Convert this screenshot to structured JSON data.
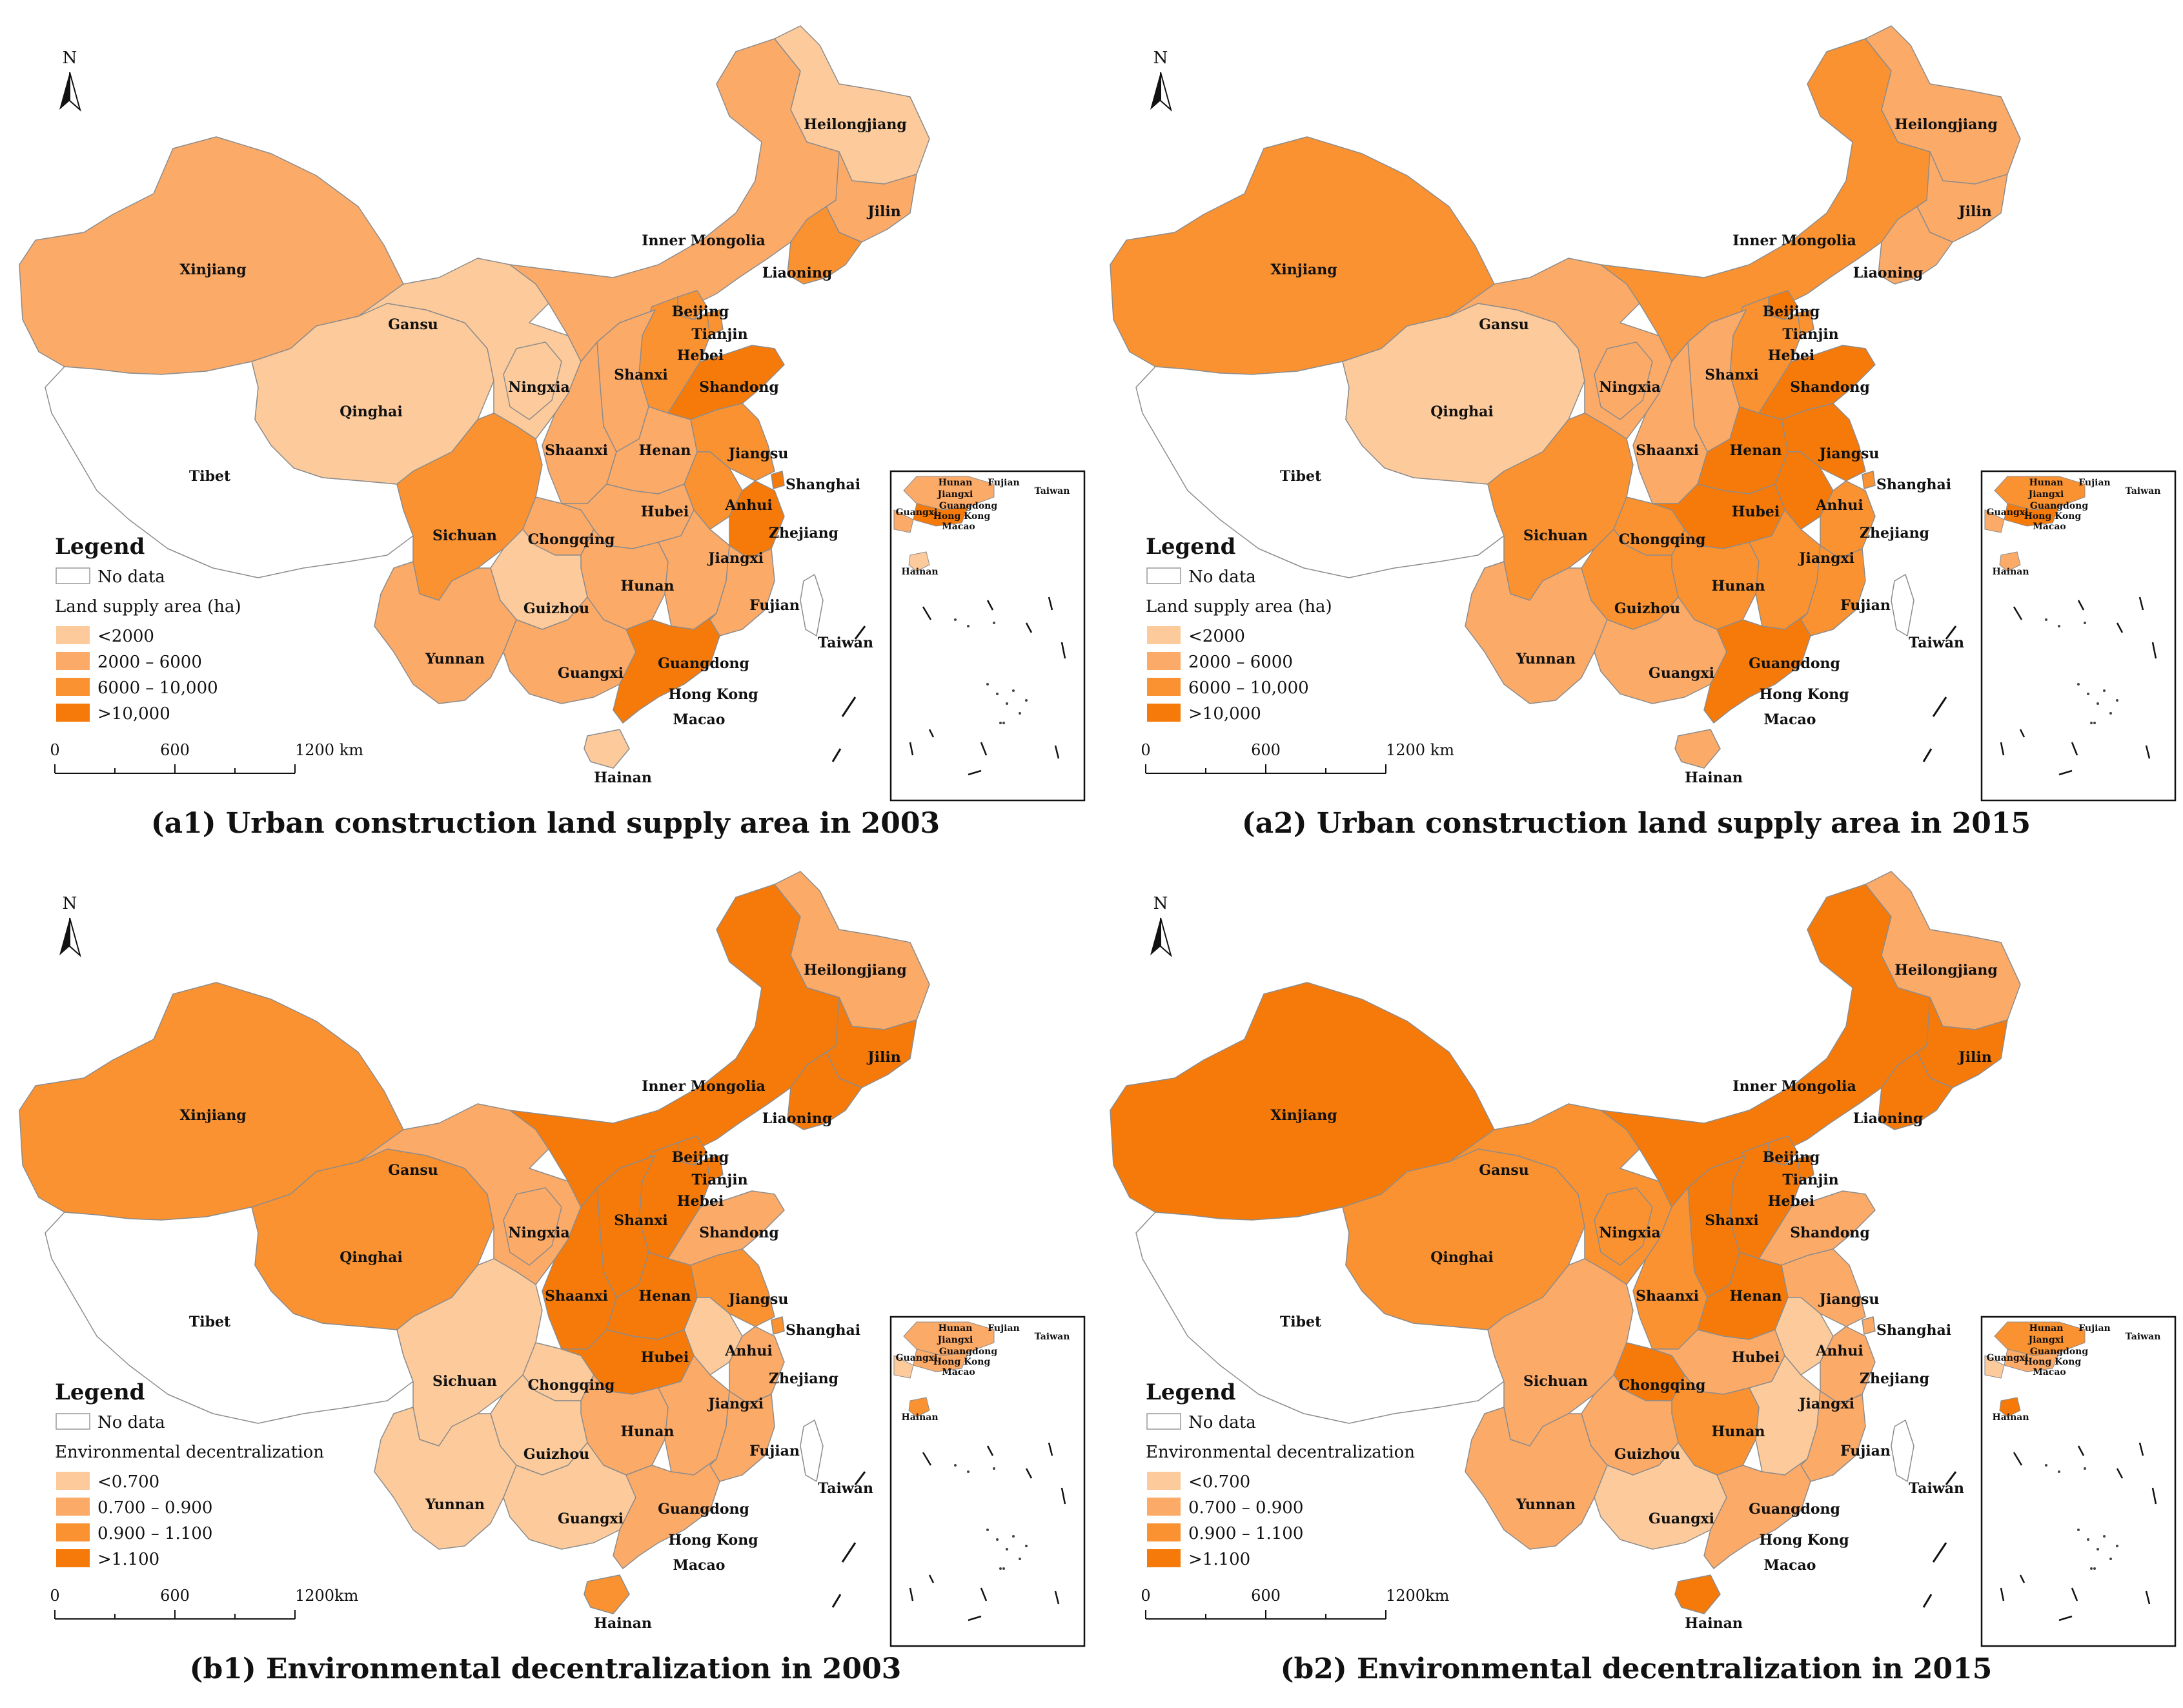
{
  "colors": {
    "c1": "#FDCB9B",
    "c2": "#FCAA68",
    "c3": "#FA9231",
    "c4": "#F67A09",
    "nodata": "#FFFFFF",
    "border": "#8C8C8C"
  },
  "north_label": "N",
  "legend_heading": "Legend",
  "nodata_label": "No data",
  "scale": {
    "t0": "0",
    "t1": "600",
    "t2": "1200 km",
    "t2_b": "1200km"
  },
  "inset_labels": [
    "Hunan",
    "Fujian",
    "Jiangxi",
    "Taiwan",
    "Guangxi",
    "Guangdong",
    "Hong Kong",
    "Macao",
    "Hainan"
  ],
  "maps": [
    {
      "caption": "(a1) Urban construction land supply area  in 2003",
      "legend_title": "Land supply area (ha)",
      "classes": [
        "<2000",
        "2000 – 6000",
        "6000 – 10,000",
        ">10,000"
      ],
      "provinces": {
        "Xinjiang": 2,
        "Tibet": 0,
        "Qinghai": 1,
        "Gansu": 1,
        "Ningxia": 1,
        "Inner Mongolia": 2,
        "Heilongjiang": 1,
        "Jilin": 2,
        "Liaoning": 3,
        "Beijing": 3,
        "Tianjin": 3,
        "Hebei": 3,
        "Shanxi": 2,
        "Shandong": 4,
        "Shaanxi": 2,
        "Henan": 2,
        "Jiangsu": 3,
        "Anhui": 3,
        "Shanghai": 4,
        "Zhejiang": 4,
        "Sichuan": 3,
        "Chongqing": 2,
        "Hubei": 2,
        "Hunan": 2,
        "Jiangxi": 2,
        "Fujian": 2,
        "Guizhou": 1,
        "Yunnan": 2,
        "Guangxi": 2,
        "Guangdong": 4,
        "Hainan": 1,
        "Taiwan": 0
      }
    },
    {
      "caption": "(a2) Urban construction land supply area  in 2015",
      "legend_title": "Land supply area (ha)",
      "classes": [
        "<2000",
        "2000 – 6000",
        "6000 – 10,000",
        ">10,000"
      ],
      "provinces": {
        "Xinjiang": 3,
        "Tibet": 0,
        "Qinghai": 1,
        "Gansu": 2,
        "Ningxia": 2,
        "Inner Mongolia": 3,
        "Heilongjiang": 2,
        "Jilin": 2,
        "Liaoning": 2,
        "Beijing": 4,
        "Tianjin": 3,
        "Hebei": 3,
        "Shanxi": 2,
        "Shandong": 4,
        "Shaanxi": 2,
        "Henan": 4,
        "Jiangsu": 4,
        "Anhui": 4,
        "Shanghai": 3,
        "Zhejiang": 3,
        "Sichuan": 3,
        "Chongqing": 3,
        "Hubei": 4,
        "Hunan": 3,
        "Jiangxi": 3,
        "Fujian": 3,
        "Guizhou": 3,
        "Yunnan": 2,
        "Guangxi": 2,
        "Guangdong": 4,
        "Hainan": 2,
        "Taiwan": 0
      }
    },
    {
      "caption": "(b1) Environmental decentralization  in 2003",
      "legend_title": "Environmental decentralization",
      "classes": [
        "<0.700",
        "0.700 – 0.900",
        "0.900 – 1.100",
        ">1.100"
      ],
      "provinces": {
        "Xinjiang": 3,
        "Tibet": 0,
        "Qinghai": 3,
        "Gansu": 2,
        "Ningxia": 2,
        "Inner Mongolia": 4,
        "Heilongjiang": 2,
        "Jilin": 4,
        "Liaoning": 4,
        "Beijing": 4,
        "Tianjin": 4,
        "Hebei": 4,
        "Shanxi": 4,
        "Shandong": 2,
        "Shaanxi": 4,
        "Henan": 4,
        "Jiangsu": 3,
        "Anhui": 1,
        "Shanghai": 3,
        "Zhejiang": 2,
        "Sichuan": 1,
        "Chongqing": 1,
        "Hubei": 4,
        "Hunan": 2,
        "Jiangxi": 2,
        "Fujian": 2,
        "Guizhou": 1,
        "Yunnan": 1,
        "Guangxi": 1,
        "Guangdong": 2,
        "Hainan": 3,
        "Taiwan": 0
      }
    },
    {
      "caption": "(b2) Environmental decentralization  in 2015",
      "legend_title": "Environmental decentralization",
      "classes": [
        "<0.700",
        "0.700 – 0.900",
        "0.900 – 1.100",
        ">1.100"
      ],
      "provinces": {
        "Xinjiang": 4,
        "Tibet": 0,
        "Qinghai": 3,
        "Gansu": 3,
        "Ningxia": 3,
        "Inner Mongolia": 4,
        "Heilongjiang": 2,
        "Jilin": 4,
        "Liaoning": 4,
        "Beijing": 4,
        "Tianjin": 4,
        "Hebei": 4,
        "Shanxi": 4,
        "Shandong": 2,
        "Shaanxi": 3,
        "Henan": 4,
        "Jiangsu": 2,
        "Anhui": 1,
        "Shanghai": 2,
        "Zhejiang": 2,
        "Sichuan": 2,
        "Chongqing": 4,
        "Hubei": 2,
        "Hunan": 3,
        "Jiangxi": 1,
        "Fujian": 2,
        "Guizhou": 2,
        "Yunnan": 2,
        "Guangxi": 1,
        "Guangdong": 2,
        "Hainan": 4,
        "Taiwan": 0
      }
    }
  ]
}
